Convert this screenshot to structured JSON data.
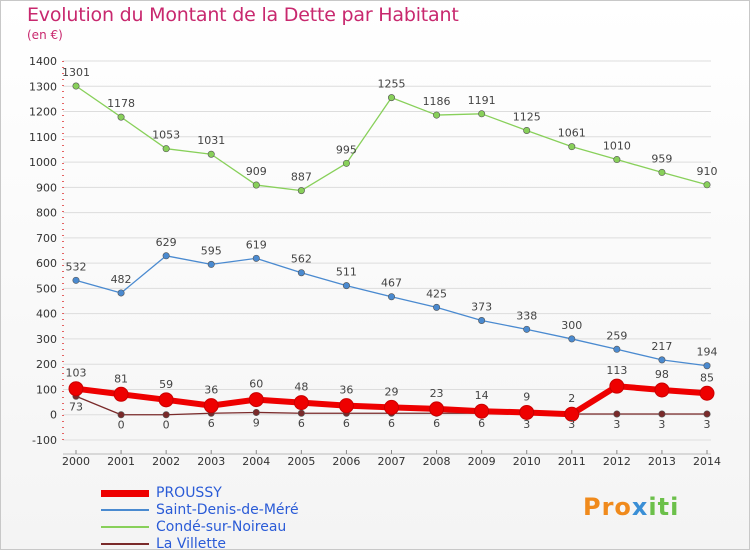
{
  "title": "Evolution du Montant de la Dette par Habitant",
  "unit_label": "(en €)",
  "brand": {
    "part1": "Pro",
    "part2": "x",
    "part3": "iti"
  },
  "colors": {
    "title": "#c8286e",
    "legend_text": "#2a5bd7",
    "grid": "#dddddd",
    "axis": "#333333"
  },
  "chart_data": {
    "type": "line",
    "x": [
      "2000",
      "2001",
      "2002",
      "2003",
      "2004",
      "2005",
      "2006",
      "2007",
      "2008",
      "2009",
      "2010",
      "2011",
      "2012",
      "2013",
      "2014"
    ],
    "ylim": [
      -100,
      1400
    ],
    "yticks": [
      -100,
      0,
      100,
      200,
      300,
      400,
      500,
      600,
      700,
      800,
      900,
      1000,
      1100,
      1200,
      1300,
      1400
    ],
    "grid": "horizontal",
    "legend_position": "bottom-left",
    "series": [
      {
        "name": "PROUSSY",
        "color": "#ee0000",
        "values": [
          103,
          81,
          59,
          36,
          60,
          48,
          36,
          29,
          23,
          14,
          9,
          2,
          113,
          98,
          85
        ]
      },
      {
        "name": "Saint-Denis-de-Méré",
        "color": "#4a8ad0",
        "values": [
          532,
          482,
          629,
          595,
          619,
          562,
          511,
          467,
          425,
          373,
          338,
          300,
          259,
          217,
          194
        ]
      },
      {
        "name": "Condé-sur-Noireau",
        "color": "#88d05a",
        "values": [
          1301,
          1178,
          1053,
          1031,
          909,
          887,
          995,
          1255,
          1186,
          1191,
          1125,
          1061,
          1010,
          959,
          910
        ]
      },
      {
        "name": "La Villette",
        "color": "#7a2a2a",
        "values": [
          73,
          0,
          0,
          6,
          9,
          6,
          6,
          6,
          6,
          6,
          3,
          3,
          3,
          3,
          3
        ]
      }
    ]
  }
}
